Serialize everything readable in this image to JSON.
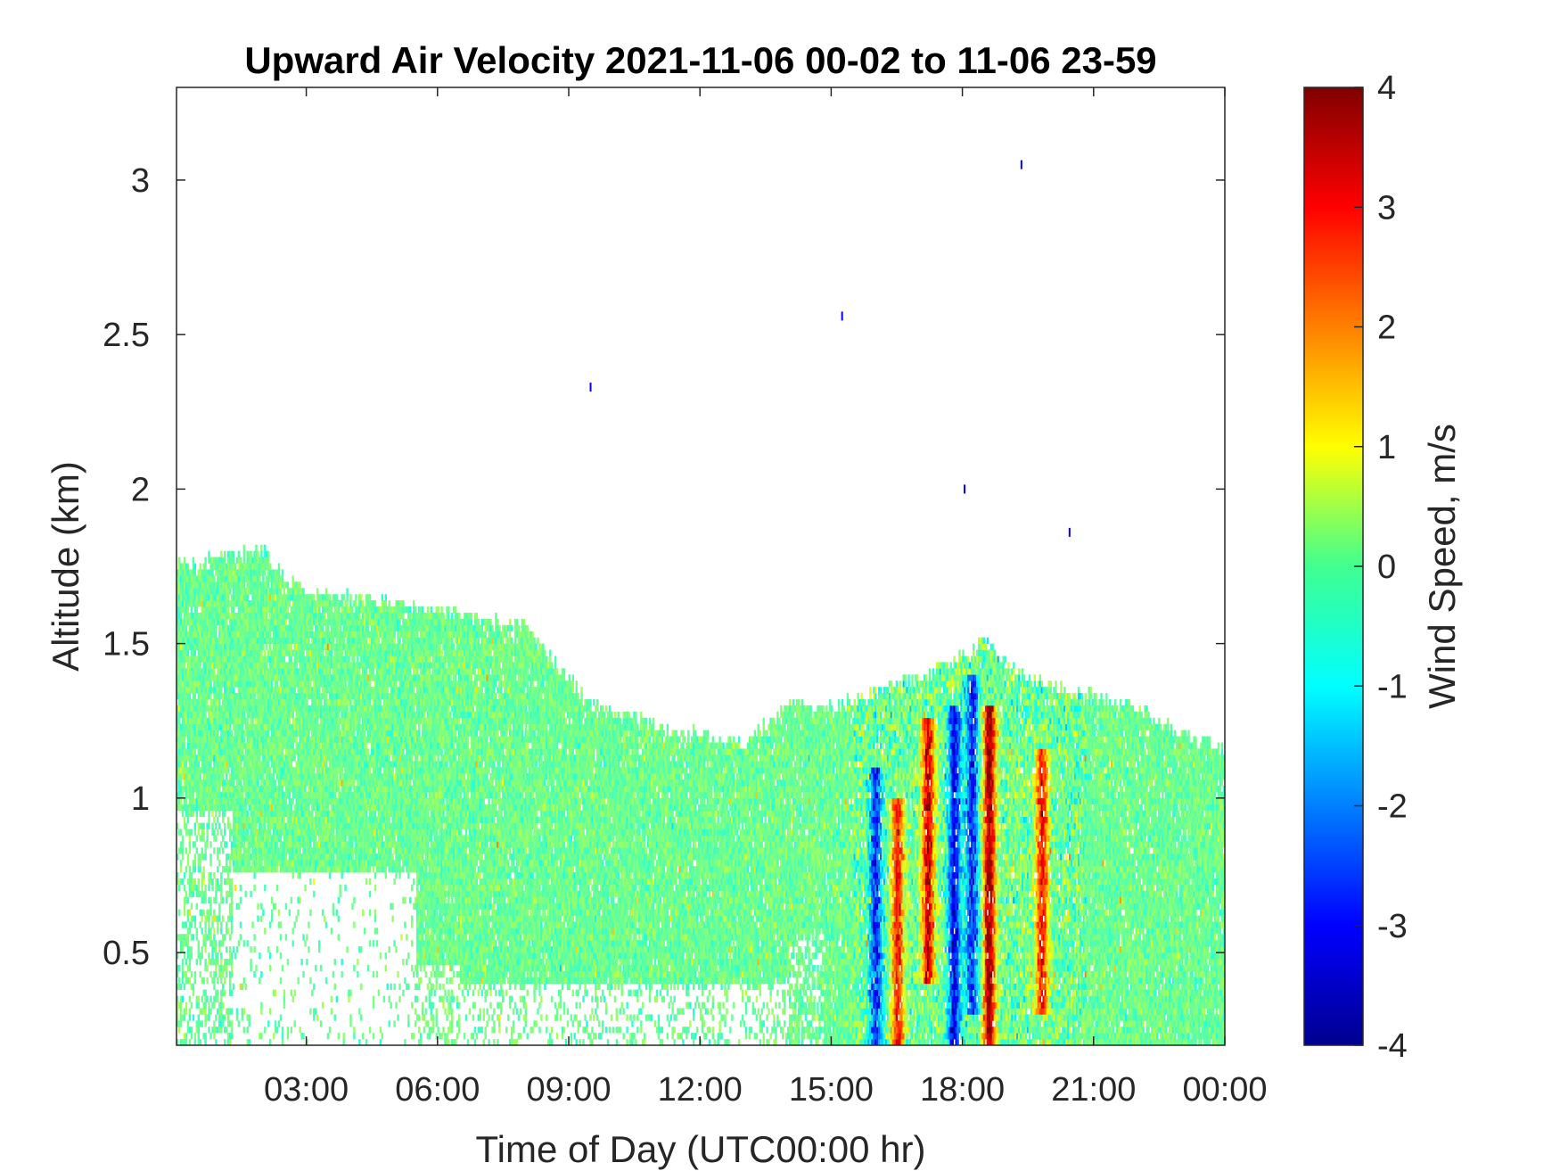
{
  "chart_data": {
    "type": "heatmap",
    "title": "Upward Air Velocity 2021-11-06 00-02 to 11-06 23-59",
    "xlabel": "Time of Day (UTC00:00 hr)",
    "ylabel": "Altitude (km)",
    "xlim": [
      0.033,
      24
    ],
    "ylim": [
      0.2,
      3.3
    ],
    "x_ticks": [
      {
        "value": 3,
        "label": "03:00"
      },
      {
        "value": 6,
        "label": "06:00"
      },
      {
        "value": 9,
        "label": "09:00"
      },
      {
        "value": 12,
        "label": "12:00"
      },
      {
        "value": 15,
        "label": "15:00"
      },
      {
        "value": 18,
        "label": "18:00"
      },
      {
        "value": 21,
        "label": "21:00"
      },
      {
        "value": 24,
        "label": "00:00"
      }
    ],
    "y_ticks": [
      {
        "value": 0.5,
        "label": "0.5"
      },
      {
        "value": 1,
        "label": "1"
      },
      {
        "value": 1.5,
        "label": "1.5"
      },
      {
        "value": 2,
        "label": "2"
      },
      {
        "value": 2.5,
        "label": "2.5"
      },
      {
        "value": 3,
        "label": "3"
      }
    ],
    "colorbar": {
      "label": "Wind Speed, m/s",
      "clim": [
        -4,
        4
      ],
      "colormap": "jet",
      "ticks": [
        {
          "value": 4,
          "label": "4"
        },
        {
          "value": 3,
          "label": "3"
        },
        {
          "value": 2,
          "label": "2"
        },
        {
          "value": 1,
          "label": "1"
        },
        {
          "value": 0,
          "label": "0"
        },
        {
          "value": -1,
          "label": "-1"
        },
        {
          "value": -2,
          "label": "-2"
        },
        {
          "value": -3,
          "label": "-3"
        },
        {
          "value": -4,
          "label": "-4"
        }
      ]
    },
    "data_top_altitude_km": {
      "time_hr": [
        0.033,
        1,
        2,
        2.5,
        3,
        4,
        5,
        6,
        7,
        8,
        8.5,
        9.5,
        11,
        12,
        13,
        14,
        15,
        16,
        17,
        18,
        18.5,
        19,
        20,
        21,
        22,
        23,
        24
      ],
      "altitude_km": [
        1.75,
        1.76,
        1.8,
        1.7,
        1.66,
        1.64,
        1.62,
        1.6,
        1.56,
        1.56,
        1.45,
        1.3,
        1.22,
        1.2,
        1.16,
        1.3,
        1.28,
        1.33,
        1.38,
        1.45,
        1.5,
        1.42,
        1.35,
        1.32,
        1.28,
        1.2,
        1.15
      ]
    },
    "strong_updraft_bands": [
      {
        "time_hr": 16.5,
        "altitude_km": [
          0.2,
          1.0
        ],
        "peak_m_s": 3
      },
      {
        "time_hr": 17.2,
        "altitude_km": [
          0.4,
          1.25
        ],
        "peak_m_s": 3.5
      },
      {
        "time_hr": 18.6,
        "altitude_km": [
          0.2,
          1.3
        ],
        "peak_m_s": 4
      },
      {
        "time_hr": 19.8,
        "altitude_km": [
          0.3,
          1.15
        ],
        "peak_m_s": 3
      }
    ],
    "strong_downdraft_bands": [
      {
        "time_hr": 16.0,
        "altitude_km": [
          0.2,
          1.1
        ],
        "peak_m_s": -2.5
      },
      {
        "time_hr": 17.8,
        "altitude_km": [
          0.2,
          1.3
        ],
        "peak_m_s": -3
      },
      {
        "time_hr": 18.2,
        "altitude_km": [
          0.3,
          1.4
        ],
        "peak_m_s": -2.5
      }
    ],
    "isolated_points": [
      {
        "time_hr": 9.5,
        "altitude_km": 2.33,
        "value_m_s": -3
      },
      {
        "time_hr": 15.25,
        "altitude_km": 2.56,
        "value_m_s": -3
      },
      {
        "time_hr": 18.05,
        "altitude_km": 2.0,
        "value_m_s": -3
      },
      {
        "time_hr": 19.35,
        "altitude_km": 3.05,
        "value_m_s": -3
      },
      {
        "time_hr": 20.45,
        "altitude_km": 1.86,
        "value_m_s": -3
      }
    ]
  }
}
